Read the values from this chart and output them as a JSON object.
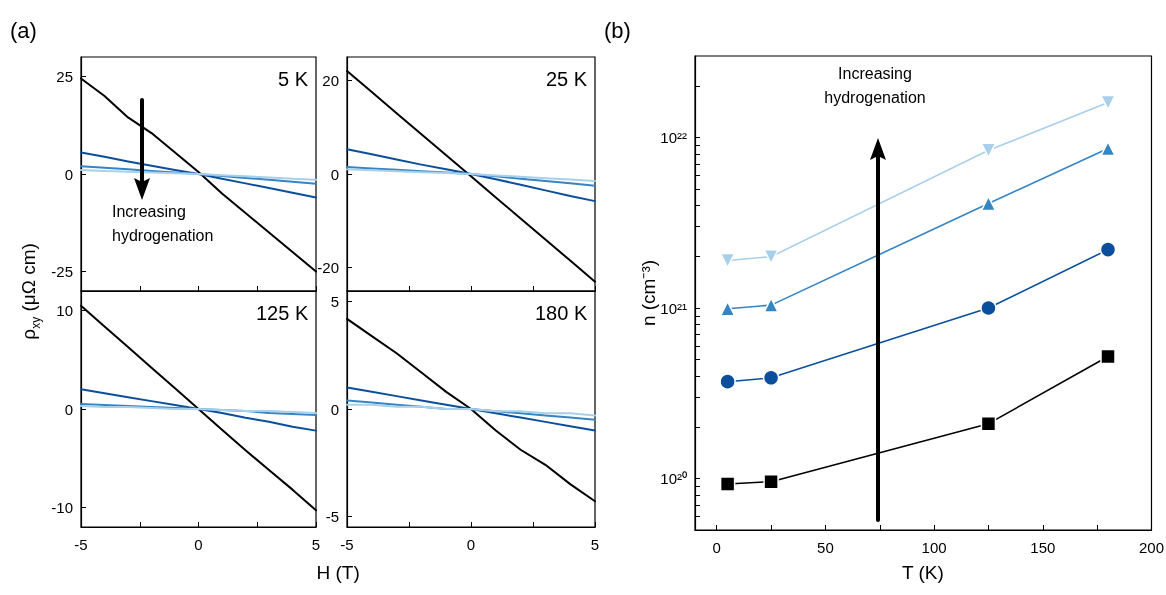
{
  "chart_data": [
    {
      "type": "line",
      "title": "(a)",
      "ylabel": "ρ$_{xy}$ (μΩ cm)",
      "annotations": [
        "5 K",
        "Increasing hydrogenation"
      ],
      "x": [
        -5,
        -4,
        -3,
        -2,
        -1,
        0,
        1,
        2,
        3,
        4,
        5
      ],
      "xlim": [
        -5,
        5
      ],
      "xticks": [
        -5,
        {
          "value": -2.5,
          "label": null
        },
        0,
        {
          "value": 2.5,
          "label": null
        },
        5
      ],
      "ylim": [
        -30,
        30
      ],
      "yticks": [
        -25,
        0,
        25
      ],
      "tick_labels": "y",
      "marker": "none",
      "series": [
        {
          "color": "#000000",
          "values": [
            24.5,
            20,
            14.5,
            10.5,
            5.5,
            0.5,
            -5,
            -10,
            -15,
            -20,
            -25
          ]
        },
        {
          "color": "#0b4f9c",
          "values": [
            5.5,
            4.4,
            3.2,
            2.1,
            1,
            0,
            -1.2,
            -2.4,
            -3.6,
            -4.8,
            -6
          ]
        },
        {
          "color": "#3584c4",
          "values": [
            2,
            1.6,
            1.2,
            0.8,
            0.4,
            0,
            -0.5,
            -1,
            -1.5,
            -2,
            -2.5
          ]
        },
        {
          "color": "#a9d0ea",
          "values": [
            1,
            0.8,
            0.6,
            0.4,
            0.2,
            0,
            -0.3,
            -0.6,
            -0.9,
            -1.2,
            -1.5
          ]
        }
      ]
    },
    {
      "type": "line",
      "annotations": [
        "25 K"
      ],
      "x": [
        -5,
        -4,
        -3,
        -2,
        -1,
        0,
        1,
        2,
        3,
        4,
        5
      ],
      "xlim": [
        -5,
        5
      ],
      "xticks": [
        -5,
        {
          "value": -2.5,
          "label": null
        },
        0,
        {
          "value": 2.5,
          "label": null
        },
        5
      ],
      "ylim": [
        -25,
        25
      ],
      "yticks": [
        -20,
        0,
        20
      ],
      "tick_labels": "y",
      "marker": "none",
      "series": [
        {
          "color": "#000000",
          "values": [
            22,
            17.5,
            13,
            8.5,
            4,
            -0.5,
            -5,
            -9.5,
            -14,
            -18.5,
            -23
          ]
        },
        {
          "color": "#0b4f9c",
          "values": [
            5.3,
            4.2,
            3.1,
            2,
            1,
            0,
            -1.1,
            -2.3,
            -3.5,
            -4.7,
            -5.8
          ]
        },
        {
          "color": "#3584c4",
          "values": [
            1.5,
            1.2,
            0.9,
            0.6,
            0.3,
            0,
            -0.5,
            -1,
            -1.5,
            -2,
            -2.5
          ]
        },
        {
          "color": "#a9d0ea",
          "values": [
            1,
            0.8,
            0.6,
            0.4,
            0.2,
            0,
            -0.3,
            -0.6,
            -0.9,
            -1.2,
            -1.5
          ]
        }
      ]
    },
    {
      "type": "line",
      "xlabel": "H (T)",
      "annotations": [
        "125 K"
      ],
      "x": [
        -5,
        -4,
        -3,
        -2,
        -1,
        0,
        1,
        2,
        3,
        4,
        5
      ],
      "xlim": [
        -5,
        5
      ],
      "xticks": [
        -5,
        {
          "value": -2.5,
          "label": null
        },
        0,
        {
          "value": 2.5,
          "label": null
        },
        5
      ],
      "ylim": [
        -12,
        12
      ],
      "yticks": [
        -10,
        0,
        10
      ],
      "marker": "none",
      "series": [
        {
          "color": "#000000",
          "values": [
            10.5,
            8.4,
            6.3,
            4.2,
            2.1,
            0,
            -2.1,
            -4.2,
            -6.2,
            -8.2,
            -10.3
          ]
        },
        {
          "color": "#0b4f9c",
          "values": [
            2,
            1.6,
            1.2,
            0.8,
            0.4,
            0,
            -0.4,
            -0.9,
            -1.3,
            -1.8,
            -2.2
          ]
        },
        {
          "color": "#3584c4",
          "values": [
            0.5,
            0.4,
            0.3,
            0.2,
            0.1,
            0,
            -0.1,
            -0.2,
            -0.4,
            -0.5,
            -0.6
          ]
        },
        {
          "color": "#a9d0ea",
          "values": [
            0.3,
            0.2,
            0.2,
            0.1,
            0,
            0,
            -0.1,
            -0.2,
            -0.2,
            -0.3,
            -0.4
          ]
        }
      ]
    },
    {
      "type": "line",
      "annotations": [
        "180 K"
      ],
      "x": [
        -5,
        -4,
        -3,
        -2,
        -1,
        0,
        1,
        2,
        3,
        4,
        5
      ],
      "xlim": [
        -5,
        5
      ],
      "xticks": [
        -5,
        {
          "value": -2.5,
          "label": null
        },
        0,
        {
          "value": 2.5,
          "label": null
        },
        5
      ],
      "ylim": [
        -5.5,
        5.5
      ],
      "yticks": [
        -5,
        0,
        5
      ],
      "marker": "none",
      "series": [
        {
          "color": "#000000",
          "values": [
            4.2,
            3.4,
            2.6,
            1.7,
            0.8,
            0,
            -1,
            -1.9,
            -2.6,
            -3.5,
            -4.3
          ]
        },
        {
          "color": "#0b4f9c",
          "values": [
            1,
            0.8,
            0.6,
            0.4,
            0.2,
            0,
            -0.2,
            -0.4,
            -0.6,
            -0.8,
            -1
          ]
        },
        {
          "color": "#3584c4",
          "values": [
            0.4,
            0.3,
            0.2,
            0.1,
            0,
            0,
            -0.1,
            -0.2,
            -0.3,
            -0.4,
            -0.5
          ]
        },
        {
          "color": "#a9d0ea",
          "values": [
            0.2,
            0.2,
            0.1,
            0.1,
            0,
            0,
            -0.1,
            -0.1,
            -0.2,
            -0.2,
            -0.3
          ]
        }
      ]
    },
    {
      "type": "line",
      "title": "(b)",
      "xlabel": "T (K)",
      "ylabel": "n (cm⁻³)",
      "annotations": [
        "Increasing hydrogenation"
      ],
      "x": [
        5,
        25,
        125,
        180
      ],
      "xlim": [
        -10,
        200
      ],
      "xticks": [
        0,
        {
          "value": 25,
          "label": null
        },
        50,
        {
          "value": 75,
          "label": null
        },
        100,
        {
          "value": 125,
          "label": null
        },
        150,
        {
          "value": 175,
          "label": null
        },
        200
      ],
      "log": "y",
      "ylim": [
        5e+19,
        3e+22
      ],
      "yticks": [
        {
          "value": 6e+19,
          "label": null
        },
        {
          "value": 7e+19,
          "label": null
        },
        {
          "value": 8e+19,
          "label": null
        },
        {
          "value": 9e+19,
          "label": null
        },
        {
          "value": 1e+20,
          "label": "10²⁰"
        },
        {
          "value": 2e+20,
          "label": null
        },
        {
          "value": 3e+20,
          "label": null
        },
        {
          "value": 4e+20,
          "label": null
        },
        {
          "value": 5e+20,
          "label": null
        },
        {
          "value": 6e+20,
          "label": null
        },
        {
          "value": 7e+20,
          "label": null
        },
        {
          "value": 8e+20,
          "label": null
        },
        {
          "value": 9e+20,
          "label": null
        },
        {
          "value": 1e+21,
          "label": "10²¹"
        },
        {
          "value": 2e+21,
          "label": null
        },
        {
          "value": 3e+21,
          "label": null
        },
        {
          "value": 4e+21,
          "label": null
        },
        {
          "value": 5e+21,
          "label": null
        },
        {
          "value": 6e+21,
          "label": null
        },
        {
          "value": 7e+21,
          "label": null
        },
        {
          "value": 8e+21,
          "label": null
        },
        {
          "value": 9e+21,
          "label": null
        },
        {
          "value": 1e+22,
          "label": "10²²"
        },
        {
          "value": 2e+22,
          "label": null
        }
      ],
      "series": [
        {
          "color": "#000000",
          "marker": "square",
          "values": [
            9.3e+19,
            9.6e+19,
            2.1e+20,
            5.2e+20
          ]
        },
        {
          "color": "#0b4f9c",
          "marker": "circle",
          "values": [
            3.7e+20,
            3.9e+20,
            1e+21,
            2.2e+21
          ]
        },
        {
          "color": "#3584c4",
          "marker": "triangle",
          "values": [
            9.9e+20,
            1.04e+21,
            4.1e+21,
            8.6e+21
          ]
        },
        {
          "color": "#a9d0ea",
          "marker": "triangle-down",
          "values": [
            1.9e+21,
            2e+21,
            8.4e+21,
            1.6e+22
          ]
        }
      ]
    }
  ]
}
